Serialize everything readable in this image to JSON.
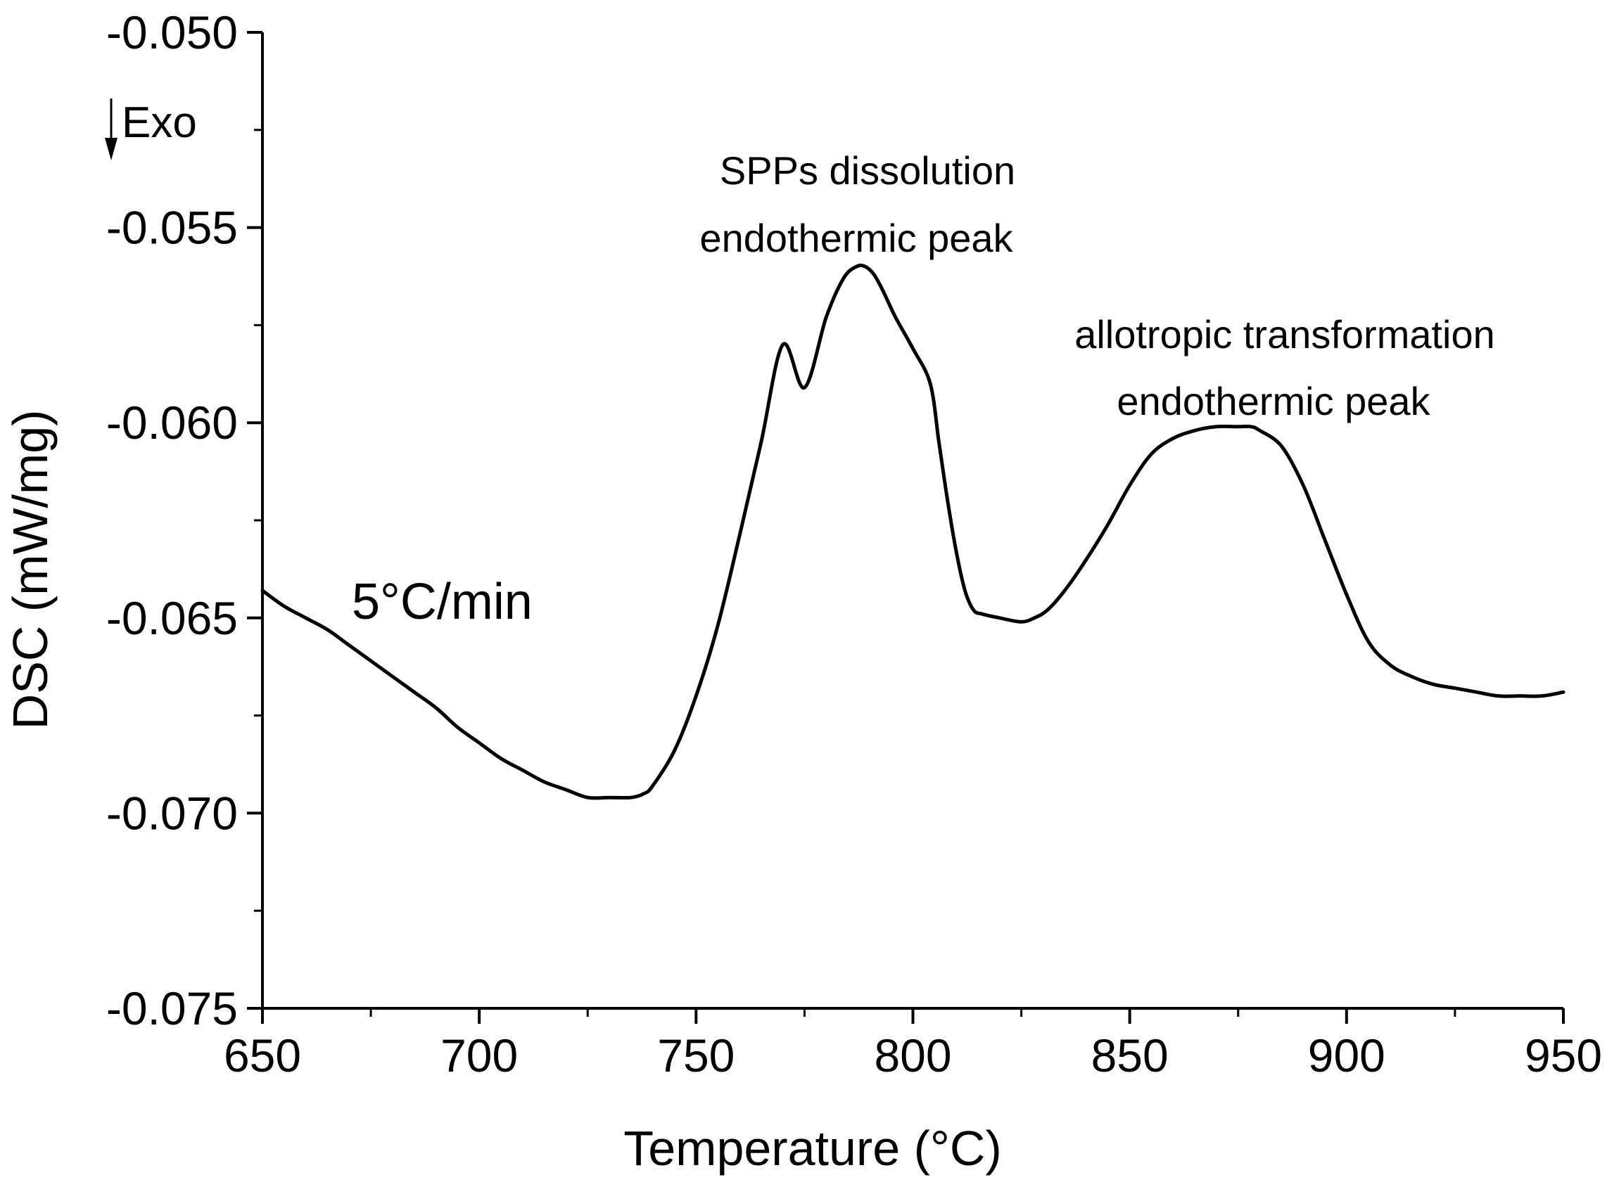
{
  "chart_data": {
    "type": "line",
    "title": "",
    "xlabel": "Temperature (°C)",
    "ylabel": "DSC (mW/mg)",
    "xlim": [
      650,
      950
    ],
    "ylim": [
      -0.075,
      -0.05
    ],
    "x_ticks": [
      650,
      700,
      750,
      800,
      850,
      900,
      950
    ],
    "x_tick_labels": [
      "650",
      "700",
      "750",
      "800",
      "850",
      "900",
      "950"
    ],
    "y_ticks": [
      -0.075,
      -0.07,
      -0.065,
      -0.06,
      -0.055,
      -0.05
    ],
    "y_tick_labels": [
      "-0.075",
      "-0.070",
      "-0.065",
      "-0.060",
      "-0.055",
      "-0.050"
    ],
    "grid": false,
    "series": [
      {
        "name": "DSC 5°C/min",
        "color": "#000000",
        "x": [
          650,
          655,
          660,
          665,
          670,
          675,
          680,
          685,
          690,
          695,
          700,
          705,
          710,
          715,
          720,
          725,
          730,
          735,
          738,
          740,
          745,
          750,
          755,
          760,
          765,
          770,
          775,
          780,
          784,
          787,
          789,
          791,
          793,
          796,
          800,
          804,
          806,
          808,
          810,
          812,
          814,
          816,
          820,
          825,
          828,
          831,
          835,
          840,
          845,
          850,
          855,
          860,
          865,
          870,
          875,
          878,
          880,
          885,
          890,
          895,
          900,
          905,
          910,
          915,
          920,
          925,
          930,
          935,
          940,
          945,
          950
        ],
        "y": [
          -0.0643,
          -0.0647,
          -0.065,
          -0.0653,
          -0.0657,
          -0.0661,
          -0.0665,
          -0.0669,
          -0.0673,
          -0.0678,
          -0.0682,
          -0.0686,
          -0.0689,
          -0.0692,
          -0.0694,
          -0.0696,
          -0.0696,
          -0.0696,
          -0.0695,
          -0.0693,
          -0.0684,
          -0.067,
          -0.0652,
          -0.0629,
          -0.0605,
          -0.058,
          -0.0591,
          -0.0573,
          -0.0563,
          -0.056,
          -0.056,
          -0.0562,
          -0.0566,
          -0.0573,
          -0.0581,
          -0.059,
          -0.0605,
          -0.062,
          -0.0633,
          -0.0643,
          -0.0648,
          -0.0649,
          -0.065,
          -0.0651,
          -0.065,
          -0.0648,
          -0.0643,
          -0.0635,
          -0.0626,
          -0.0616,
          -0.0608,
          -0.0604,
          -0.0602,
          -0.0601,
          -0.0601,
          -0.0601,
          -0.0602,
          -0.0606,
          -0.0616,
          -0.063,
          -0.0644,
          -0.0656,
          -0.0662,
          -0.0665,
          -0.0667,
          -0.0668,
          -0.0669,
          -0.067,
          -0.067,
          -0.067,
          -0.0669
        ]
      }
    ],
    "annotations": {
      "exo": "Exo",
      "rate": "5°C/min",
      "peak1_line1": "SPPs dissolution",
      "peak1_line2": "endothermic  peak",
      "peak2_line1": "allotropic transformation",
      "peak2_line2": "endothermic peak"
    }
  }
}
